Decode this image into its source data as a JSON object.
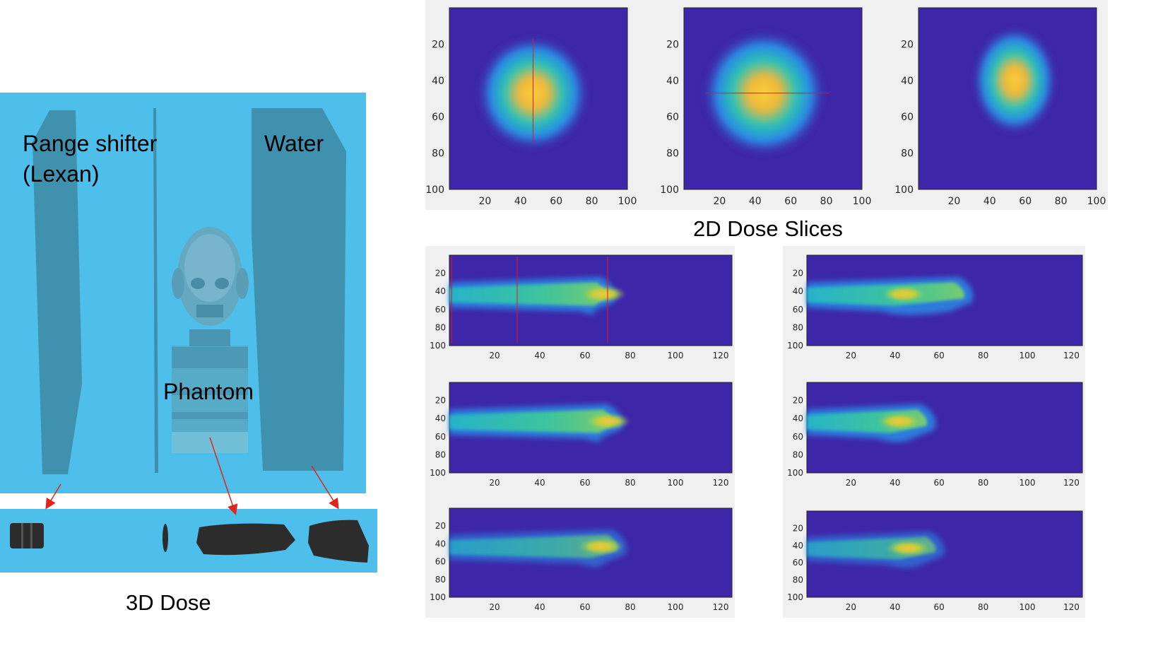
{
  "labels": {
    "range_shifter_line1": "Range shifter",
    "range_shifter_line2": "(Lexan)",
    "water": "Water",
    "phantom": "Phantom",
    "dose3d": "3D Dose",
    "dose2d": "2D Dose Slices"
  },
  "colors": {
    "scene_bg": "#4ebfea",
    "slab": "#3f8eaa",
    "volume": "#2c2c2c",
    "arrow": "#e0261b",
    "colormap_low": "#3e26a8",
    "colormap_mid": "#23c4b8",
    "colormap_high": "#f5e61e",
    "crosshair": "#e01a1a"
  },
  "top_panels": [
    {
      "xticks": [
        "20",
        "40",
        "60",
        "80",
        "100"
      ],
      "yticks": [
        "20",
        "40",
        "60",
        "80",
        "100"
      ],
      "spot": {
        "cx": 47,
        "cy": 47,
        "r": 20
      },
      "crosshair": "vertical"
    },
    {
      "xticks": [
        "20",
        "40",
        "60",
        "80",
        "100"
      ],
      "yticks": [
        "20",
        "40",
        "60",
        "80",
        "100"
      ],
      "spot": {
        "cx": 45,
        "cy": 47,
        "r": 22
      },
      "crosshair": "horizontal"
    },
    {
      "xticks": [
        "20",
        "40",
        "60",
        "80",
        "100"
      ],
      "yticks": [
        "20",
        "40",
        "60",
        "80",
        "100"
      ],
      "spot": {
        "cx": 54,
        "cy": 40,
        "r": 15
      },
      "crosshair": "none"
    }
  ],
  "bottom_panels": [
    {
      "xticks": [
        "20",
        "40",
        "60",
        "80",
        "100",
        "120"
      ],
      "yticks": [
        "20",
        "40",
        "60",
        "80",
        "100"
      ],
      "beam_end": 73,
      "bragg_x": 68,
      "lines": [
        1,
        30,
        70
      ],
      "noisy": false
    },
    {
      "xticks": [
        "20",
        "40",
        "60",
        "80",
        "100",
        "120"
      ],
      "yticks": [
        "20",
        "40",
        "60",
        "80",
        "100"
      ],
      "beam_end": 75,
      "bragg_x": 44,
      "lines": [],
      "noisy": false
    },
    {
      "xticks": [
        "20",
        "40",
        "60",
        "80",
        "100",
        "120"
      ],
      "yticks": [
        "20",
        "40",
        "60",
        "80",
        "100"
      ],
      "beam_end": 76,
      "bragg_x": 70,
      "lines": [],
      "noisy": false
    },
    {
      "xticks": [
        "20",
        "40",
        "60",
        "80",
        "100",
        "120"
      ],
      "yticks": [
        "20",
        "40",
        "60",
        "80",
        "100"
      ],
      "beam_end": 58,
      "bragg_x": 42,
      "lines": [],
      "noisy": false
    },
    {
      "xticks": [
        "20",
        "40",
        "60",
        "80",
        "100",
        "120"
      ],
      "yticks": [
        "20",
        "40",
        "60",
        "80",
        "100"
      ],
      "beam_end": 78,
      "bragg_x": 67,
      "lines": [],
      "noisy": true
    },
    {
      "xticks": [
        "20",
        "40",
        "60",
        "80",
        "100",
        "120"
      ],
      "yticks": [
        "20",
        "40",
        "60",
        "80",
        "100"
      ],
      "beam_end": 62,
      "bragg_x": 46,
      "lines": [],
      "noisy": true
    }
  ]
}
